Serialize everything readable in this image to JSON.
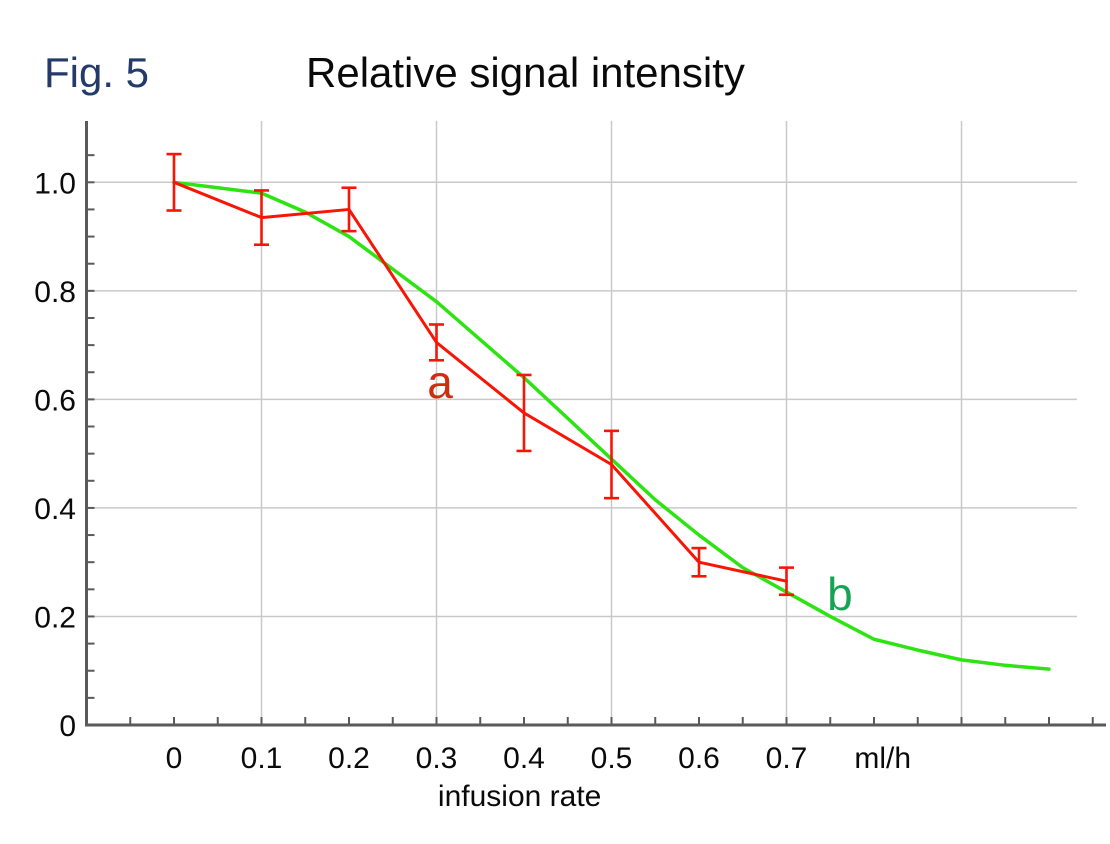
{
  "figure": {
    "fig_label": "Fig. 5",
    "fig_label_color": "#243a6b",
    "title": "Relative signal intensity",
    "title_color": "#0a0a0a",
    "background_color": "#ffffff"
  },
  "chart_data": {
    "type": "line",
    "title": "Relative signal intensity",
    "xlabel": "infusion rate",
    "x_unit": "ml/h",
    "ylabel": "",
    "xlim": [
      -0.1,
      1.07
    ],
    "ylim": [
      0,
      1.11
    ],
    "grid": {
      "on": true,
      "x_gridlines": [
        0.1,
        0.3,
        0.5,
        0.7,
        0.9
      ],
      "y_gridlines": [
        0.2,
        0.4,
        0.6,
        0.8,
        1.0
      ]
    },
    "minor_tick_step": 0.05,
    "x_ticks": [
      {
        "value": 0.0,
        "label": "0"
      },
      {
        "value": 0.1,
        "label": "0.1"
      },
      {
        "value": 0.2,
        "label": "0.2"
      },
      {
        "value": 0.3,
        "label": "0.3"
      },
      {
        "value": 0.4,
        "label": "0.4"
      },
      {
        "value": 0.5,
        "label": "0.5"
      },
      {
        "value": 0.6,
        "label": "0.6"
      },
      {
        "value": 0.7,
        "label": "0.7"
      }
    ],
    "x_unit_pos": 0.81,
    "xlabel_pos": 0.395,
    "y_ticks": [
      {
        "value": 1.0,
        "label": "1.0"
      },
      {
        "value": 0.8,
        "label": "0.8"
      },
      {
        "value": 0.6,
        "label": "0.6"
      },
      {
        "value": 0.4,
        "label": "0.4"
      },
      {
        "value": 0.2,
        "label": "0.2"
      },
      {
        "value": 0.0,
        "label": "0"
      }
    ],
    "axis_color": "#5a5a5a",
    "grid_color": "#c9c9c9",
    "tick_label_color": "#0a0a0a",
    "legend": "inline-labels",
    "series": [
      {
        "name": "a",
        "color": "#f91505",
        "label_color": "#cf2d10",
        "label_pos": {
          "x": 0.304,
          "y": 0.632
        },
        "x": [
          0,
          0.1,
          0.2,
          0.3,
          0.4,
          0.5,
          0.6,
          0.7
        ],
        "y": [
          1.0,
          0.935,
          0.95,
          0.705,
          0.575,
          0.48,
          0.3,
          0.265
        ],
        "yerr": [
          0.052,
          0.05,
          0.04,
          0.033,
          0.07,
          0.062,
          0.026,
          0.025
        ]
      },
      {
        "name": "b",
        "color": "#2de412",
        "label_color": "#17a356",
        "label_pos": {
          "x": 0.761,
          "y": 0.241
        },
        "x": [
          0,
          0.05,
          0.1,
          0.15,
          0.2,
          0.25,
          0.3,
          0.35,
          0.4,
          0.45,
          0.5,
          0.55,
          0.6,
          0.65,
          0.7,
          0.75,
          0.8,
          0.85,
          0.9,
          0.95,
          1.0
        ],
        "y": [
          1.0,
          0.99,
          0.98,
          0.945,
          0.9,
          0.84,
          0.78,
          0.71,
          0.64,
          0.565,
          0.49,
          0.415,
          0.35,
          0.29,
          0.245,
          0.2,
          0.158,
          0.138,
          0.12,
          0.11,
          0.103
        ]
      }
    ]
  }
}
